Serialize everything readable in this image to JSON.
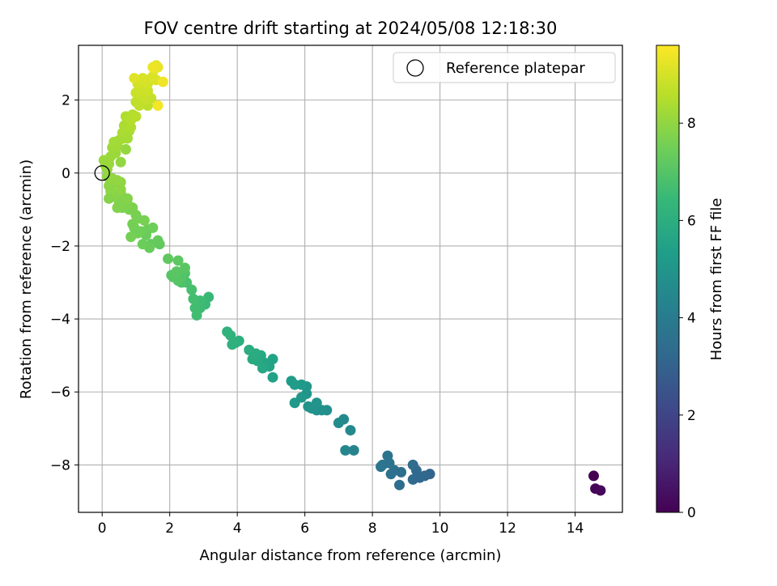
{
  "chart_data": {
    "type": "scatter",
    "title": "FOV centre drift starting at 2024/05/08 12:18:30",
    "xlabel": "Angular distance from reference (arcmin)",
    "ylabel": "Rotation from reference (arcmin)",
    "xlim": [
      -0.7,
      15.4
    ],
    "ylim": [
      -9.3,
      3.5
    ],
    "xticks": [
      "0",
      "2",
      "4",
      "6",
      "8",
      "10",
      "12",
      "14"
    ],
    "yticks": [
      "−8",
      "−6",
      "−4",
      "−2",
      "0",
      "2"
    ],
    "grid": true,
    "legend": {
      "placement": "top-right",
      "entries": [
        "Reference platepar"
      ]
    },
    "reference_point": {
      "x": 0,
      "y": 0
    },
    "colorbar": {
      "label": "Hours from first FF file",
      "colormap": "viridis",
      "range": [
        0,
        9.6
      ],
      "ticks": [
        "0",
        "2",
        "4",
        "6",
        "8"
      ]
    },
    "series": [
      {
        "points": [
          [
            14.55,
            -8.3,
            0.0
          ],
          [
            14.6,
            -8.65,
            0.1
          ],
          [
            14.75,
            -8.7,
            0.2
          ],
          [
            9.7,
            -8.25,
            3.1
          ],
          [
            9.55,
            -8.3,
            3.15
          ],
          [
            9.4,
            -8.35,
            3.2
          ],
          [
            9.3,
            -8.15,
            3.25
          ],
          [
            9.2,
            -8.4,
            3.3
          ],
          [
            9.2,
            -8.0,
            3.35
          ],
          [
            8.8,
            -8.55,
            3.4
          ],
          [
            8.85,
            -8.2,
            3.45
          ],
          [
            8.65,
            -8.15,
            3.5
          ],
          [
            8.55,
            -8.25,
            3.55
          ],
          [
            8.5,
            -7.95,
            3.6
          ],
          [
            8.45,
            -7.75,
            3.65
          ],
          [
            8.3,
            -8.0,
            3.7
          ],
          [
            8.25,
            -8.05,
            3.75
          ],
          [
            7.45,
            -7.6,
            4.3
          ],
          [
            7.2,
            -7.6,
            4.4
          ],
          [
            7.35,
            -7.05,
            4.5
          ],
          [
            7.15,
            -6.75,
            4.55
          ],
          [
            7.0,
            -6.85,
            4.6
          ],
          [
            6.65,
            -6.5,
            4.75
          ],
          [
            6.5,
            -6.5,
            4.8
          ],
          [
            6.35,
            -6.5,
            4.85
          ],
          [
            6.2,
            -6.45,
            4.9
          ],
          [
            6.1,
            -6.4,
            4.95
          ],
          [
            6.35,
            -6.3,
            4.95
          ],
          [
            6.05,
            -6.05,
            5.0
          ],
          [
            6.05,
            -5.85,
            5.05
          ],
          [
            5.9,
            -6.15,
            5.1
          ],
          [
            5.7,
            -6.3,
            5.15
          ],
          [
            5.9,
            -5.8,
            5.2
          ],
          [
            5.7,
            -5.8,
            5.25
          ],
          [
            5.6,
            -5.7,
            5.3
          ],
          [
            5.05,
            -5.6,
            5.5
          ],
          [
            5.05,
            -5.1,
            5.55
          ],
          [
            4.95,
            -5.3,
            5.6
          ],
          [
            4.8,
            -5.2,
            5.65
          ],
          [
            4.75,
            -5.35,
            5.7
          ],
          [
            4.7,
            -5.0,
            5.75
          ],
          [
            4.6,
            -5.15,
            5.8
          ],
          [
            4.45,
            -5.1,
            5.85
          ],
          [
            4.55,
            -4.95,
            5.9
          ],
          [
            4.35,
            -4.85,
            5.95
          ],
          [
            4.05,
            -4.6,
            6.0
          ],
          [
            3.95,
            -4.65,
            6.05
          ],
          [
            3.85,
            -4.7,
            6.1
          ],
          [
            3.8,
            -4.45,
            6.15
          ],
          [
            3.7,
            -4.35,
            6.2
          ],
          [
            3.15,
            -3.4,
            6.45
          ],
          [
            3.05,
            -3.6,
            6.5
          ],
          [
            2.9,
            -3.7,
            6.55
          ],
          [
            2.9,
            -3.5,
            6.6
          ],
          [
            2.75,
            -3.7,
            6.65
          ],
          [
            2.8,
            -3.9,
            6.65
          ],
          [
            2.7,
            -3.45,
            6.7
          ],
          [
            2.65,
            -3.2,
            6.75
          ],
          [
            2.5,
            -3.0,
            6.8
          ],
          [
            2.35,
            -3.0,
            6.85
          ],
          [
            2.45,
            -2.75,
            6.9
          ],
          [
            2.35,
            -2.85,
            6.95
          ],
          [
            2.25,
            -2.95,
            7.0
          ],
          [
            2.1,
            -2.85,
            7.05
          ],
          [
            2.05,
            -2.8,
            7.05
          ],
          [
            2.2,
            -2.7,
            7.1
          ],
          [
            2.45,
            -2.6,
            7.1
          ],
          [
            2.25,
            -2.4,
            7.15
          ],
          [
            1.95,
            -2.35,
            7.2
          ],
          [
            1.7,
            -1.95,
            7.25
          ],
          [
            1.65,
            -1.85,
            7.3
          ],
          [
            1.45,
            -1.95,
            7.3
          ],
          [
            1.4,
            -2.05,
            7.35
          ],
          [
            1.3,
            -1.7,
            7.35
          ],
          [
            1.2,
            -1.95,
            7.4
          ],
          [
            1.35,
            -1.55,
            7.4
          ],
          [
            1.5,
            -1.5,
            7.45
          ],
          [
            1.15,
            -1.6,
            7.45
          ],
          [
            1.05,
            -1.65,
            7.5
          ],
          [
            0.95,
            -1.5,
            7.5
          ],
          [
            0.85,
            -1.75,
            7.55
          ],
          [
            0.9,
            -1.4,
            7.55
          ],
          [
            1.05,
            -1.25,
            7.6
          ],
          [
            1.25,
            -1.3,
            7.6
          ],
          [
            1.0,
            -1.15,
            7.6
          ],
          [
            0.8,
            -1.0,
            7.65
          ],
          [
            0.9,
            -0.95,
            7.65
          ],
          [
            0.75,
            -0.85,
            7.7
          ],
          [
            0.6,
            -0.95,
            7.7
          ],
          [
            0.45,
            -0.95,
            7.75
          ],
          [
            0.5,
            -0.8,
            7.75
          ],
          [
            0.75,
            -0.7,
            7.8
          ],
          [
            0.55,
            -0.55,
            7.8
          ],
          [
            0.35,
            -0.6,
            7.85
          ],
          [
            0.3,
            -0.65,
            7.85
          ],
          [
            0.25,
            -0.5,
            7.9
          ],
          [
            0.2,
            -0.35,
            7.9
          ],
          [
            0.3,
            -0.3,
            7.9
          ],
          [
            0.55,
            -0.45,
            7.95
          ],
          [
            0.55,
            -0.25,
            7.95
          ],
          [
            0.45,
            -0.2,
            8.0
          ],
          [
            0.3,
            -0.15,
            8.0
          ],
          [
            0.15,
            -0.1,
            8.0
          ],
          [
            0.15,
            0.1,
            8.05
          ],
          [
            0.1,
            0.2,
            8.05
          ],
          [
            0.2,
            0.25,
            8.1
          ],
          [
            0.05,
            0.35,
            8.1
          ],
          [
            0.25,
            0.45,
            8.15
          ],
          [
            0.4,
            0.55,
            8.15
          ],
          [
            0.3,
            0.7,
            8.2
          ],
          [
            0.45,
            0.75,
            8.2
          ],
          [
            0.35,
            0.85,
            8.25
          ],
          [
            0.5,
            0.9,
            8.25
          ],
          [
            0.65,
            0.95,
            8.3
          ],
          [
            0.75,
            0.95,
            8.3
          ],
          [
            0.6,
            1.1,
            8.35
          ],
          [
            0.8,
            1.15,
            8.35
          ],
          [
            0.65,
            1.3,
            8.4
          ],
          [
            0.75,
            1.35,
            8.4
          ],
          [
            0.85,
            1.25,
            8.45
          ],
          [
            0.7,
            1.55,
            8.45
          ],
          [
            0.9,
            1.6,
            8.5
          ],
          [
            0.85,
            1.45,
            8.5
          ],
          [
            1.0,
            1.55,
            8.55
          ],
          [
            0.7,
            0.65,
            8.05
          ],
          [
            0.55,
            0.3,
            8.0
          ],
          [
            0.2,
            -0.7,
            7.8
          ],
          [
            1.35,
            1.85,
            8.65
          ],
          [
            1.1,
            1.85,
            8.7
          ],
          [
            1.0,
            1.95,
            8.7
          ],
          [
            1.45,
            2.05,
            8.75
          ],
          [
            1.3,
            2.0,
            8.75
          ],
          [
            1.2,
            2.1,
            8.8
          ],
          [
            1.0,
            2.2,
            8.85
          ],
          [
            1.35,
            2.25,
            8.85
          ],
          [
            1.25,
            2.25,
            8.9
          ],
          [
            1.15,
            2.35,
            8.9
          ],
          [
            1.05,
            2.45,
            8.95
          ],
          [
            1.35,
            2.45,
            8.95
          ],
          [
            1.25,
            2.5,
            9.0
          ],
          [
            1.45,
            2.6,
            9.05
          ],
          [
            1.2,
            2.6,
            9.05
          ],
          [
            1.6,
            2.55,
            9.1
          ],
          [
            1.5,
            2.65,
            9.1
          ],
          [
            0.95,
            2.6,
            9.15
          ],
          [
            1.55,
            2.85,
            9.2
          ],
          [
            1.6,
            2.95,
            9.25
          ],
          [
            1.65,
            2.9,
            9.3
          ],
          [
            1.5,
            2.9,
            9.35
          ],
          [
            1.8,
            2.5,
            9.4
          ],
          [
            1.65,
            1.85,
            9.45
          ]
        ]
      }
    ]
  }
}
